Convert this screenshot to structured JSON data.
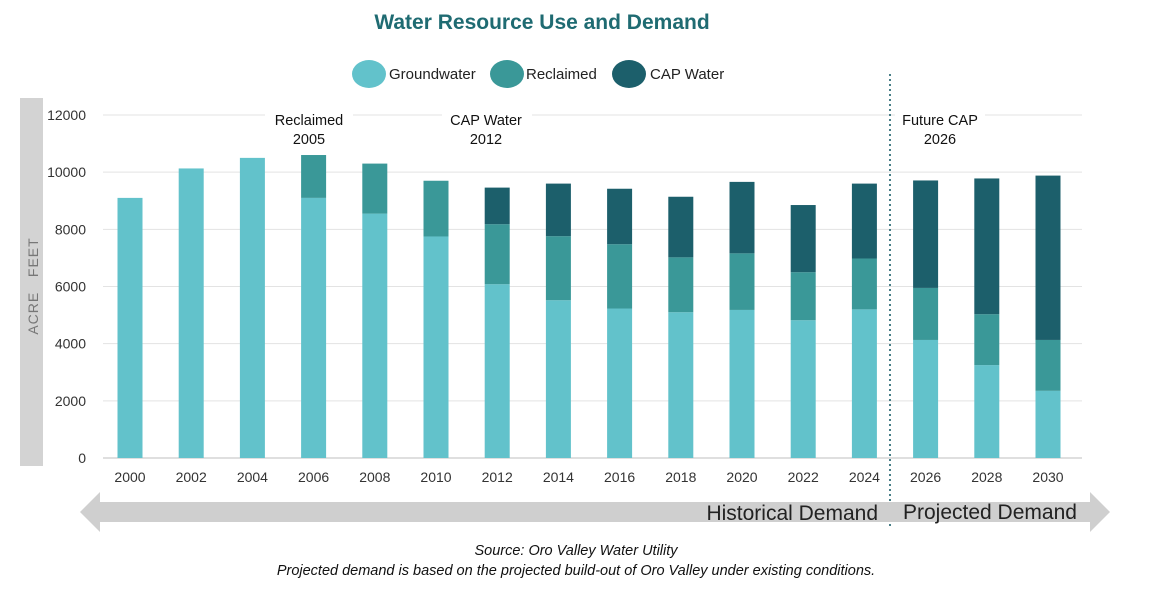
{
  "chart_data": {
    "type": "bar",
    "stacked": true,
    "title": "Water Resource Use and Demand",
    "ylabel": "ACRE   FEET",
    "xlabel": "",
    "ylim": [
      0,
      12000
    ],
    "yticks": [
      0,
      2000,
      4000,
      6000,
      8000,
      10000,
      12000
    ],
    "grid": true,
    "legend_position": "top",
    "categories": [
      "2000",
      "2002",
      "2004",
      "2006",
      "2008",
      "2010",
      "2012",
      "2014",
      "2016",
      "2018",
      "2020",
      "2022",
      "2024",
      "2026",
      "2028",
      "2030"
    ],
    "series": [
      {
        "name": "Groundwater",
        "color": "#62c2cb",
        "values": [
          9100,
          10130,
          10500,
          9100,
          8550,
          7750,
          6080,
          5520,
          5230,
          5100,
          5180,
          4820,
          5200,
          4130,
          3250,
          2350
        ]
      },
      {
        "name": "Reclaimed",
        "color": "#3a9898",
        "values": [
          0,
          0,
          0,
          1500,
          1750,
          1950,
          2100,
          2240,
          2250,
          1920,
          1980,
          1680,
          1780,
          1820,
          1780,
          1780
        ]
      },
      {
        "name": "CAP Water",
        "color": "#1c5f6b",
        "values": [
          0,
          0,
          0,
          0,
          0,
          0,
          1280,
          1840,
          1940,
          2120,
          2500,
          2350,
          2620,
          3760,
          4750,
          5750
        ]
      }
    ],
    "annotations": [
      {
        "line1": "Reclaimed",
        "line2": "2005"
      },
      {
        "line1": "CAP Water",
        "line2": "2012"
      },
      {
        "line1": "Future CAP",
        "line2": "2026"
      }
    ],
    "divider_between": [
      "2024",
      "2026"
    ],
    "historical_label": "Historical Demand",
    "projected_label": "Projected Demand"
  },
  "footer": {
    "source": "Source: Oro Valley Water Utility",
    "note": "Projected demand is based on the projected build-out of Oro Valley under existing conditions."
  }
}
